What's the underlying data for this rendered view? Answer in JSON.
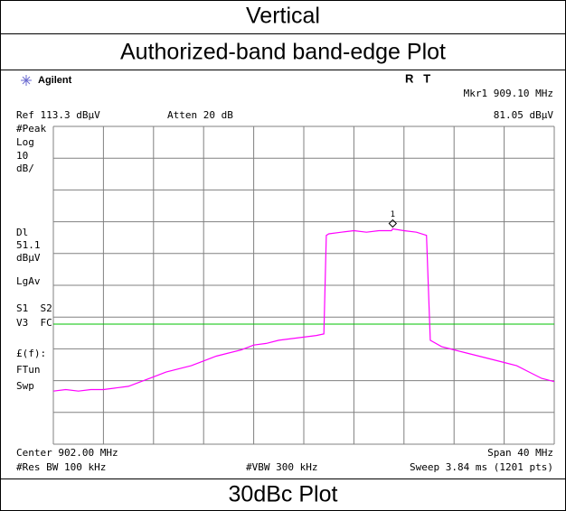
{
  "header": {
    "title": "Vertical",
    "subtitle": "Authorized-band band-edge Plot"
  },
  "footer": "30dBc Plot",
  "instrument": {
    "brand": "Agilent",
    "status": "R   T",
    "marker_label": "Mkr1 909.10 MHz",
    "marker_level": "81.05 dBµV",
    "ref_level": "Ref 113.3 dBµV",
    "atten": "Atten 20 dB",
    "left_labels": [
      "#Peak",
      "Log",
      "10",
      "dB/",
      "Dl",
      "dBµV",
      "LgAv",
      "S1  S2",
      "V3  FC",
      "£(f):",
      "FTun",
      "Swp"
    ],
    "center": "Center 902.00 MHz",
    "span": "Span 40 MHz",
    "rbw": "#Res BW 100 kHz",
    "vbw": "#VBW 300 kHz",
    "sweep": "Sweep 3.84 ms (1201 pts)"
  },
  "chart_data": {
    "type": "line",
    "color": "#ff00ff",
    "x": [
      882,
      883,
      884,
      885,
      886,
      887,
      888,
      889,
      890,
      891,
      892,
      893,
      894,
      895,
      896,
      897,
      898,
      899,
      900,
      901,
      902,
      903,
      903.6,
      903.8,
      904,
      905,
      906,
      907,
      908,
      909,
      909.1,
      910,
      911,
      911.8,
      912.1,
      913,
      914,
      915,
      916,
      917,
      918,
      919,
      920,
      921,
      922
    ],
    "values": [
      30,
      30.5,
      30,
      30.5,
      30.5,
      31,
      31.5,
      33,
      34.5,
      36,
      37,
      38,
      39.5,
      41,
      42,
      43,
      44.5,
      45,
      46,
      46.5,
      47,
      47.5,
      48,
      79,
      79.5,
      80,
      80.5,
      80,
      80.5,
      80.5,
      81.05,
      80.5,
      80,
      79,
      46,
      44,
      43,
      42,
      41,
      40,
      39,
      38,
      36,
      34,
      33
    ],
    "xlim": [
      882,
      922
    ],
    "ylim": [
      13.3,
      113.3
    ],
    "xticks": [
      882,
      886,
      890,
      894,
      898,
      902,
      906,
      910,
      914,
      918,
      922
    ],
    "yticks": [
      13.3,
      23.3,
      33.3,
      43.3,
      53.3,
      63.3,
      73.3,
      83.3,
      93.3,
      103.3,
      113.3
    ],
    "grid": true,
    "display_line": 51.1,
    "display_line_color": "#00c000",
    "marker": {
      "label": "1",
      "x": 909.1,
      "y": 81.05
    }
  }
}
